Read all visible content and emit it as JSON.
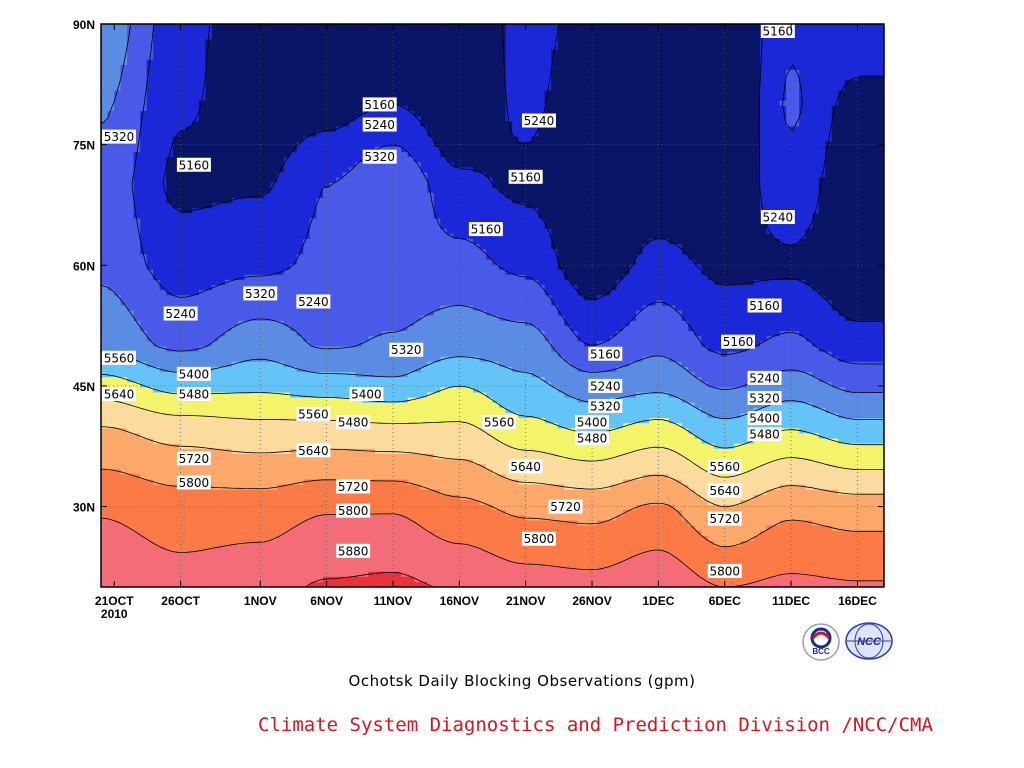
{
  "chart_data": {
    "type": "heatmap",
    "title": "Ochotsk Daily Blocking Observations (gpm)",
    "x_ticks": [
      "21OCT",
      "26OCT",
      "1NOV",
      "6NOV",
      "11NOV",
      "16NOV",
      "21NOV",
      "26NOV",
      "1DEC",
      "6DEC",
      "11DEC",
      "16DEC"
    ],
    "x_tick_year": "2010",
    "y_ticks": [
      "30N",
      "45N",
      "60N",
      "75N",
      "90N"
    ],
    "y_tick_values": [
      30,
      45,
      60,
      75,
      90
    ],
    "x_range": [
      "2010-10-20",
      "2010-12-18"
    ],
    "y_range": [
      20,
      90
    ],
    "grid": true,
    "contour_levels": [
      5160,
      5240,
      5320,
      5400,
      5480,
      5560,
      5640,
      5720,
      5800,
      5880
    ],
    "fill_colors": [
      "#0b1567",
      "#1a28d8",
      "#4a5ae8",
      "#5a8ce4",
      "#64c4f8",
      "#f4f46a",
      "#fcdc9e",
      "#fca86a",
      "#fc7a46",
      "#f46c78",
      "#e8323e"
    ],
    "latitude_profile_by_date": {
      "lat": [
        20,
        30,
        40,
        45,
        50,
        60,
        70,
        80,
        90
      ],
      "profiles": [
        {
          "date": "2010-10-20",
          "values": [
            5860,
            5790,
            5640,
            5520,
            5380,
            5300,
            5290,
            5330,
            5380
          ]
        },
        {
          "date": "2010-10-26",
          "values": [
            5830,
            5760,
            5600,
            5450,
            5300,
            5200,
            5140,
            5170,
            5190
          ]
        },
        {
          "date": "2010-11-01",
          "values": [
            5850,
            5760,
            5580,
            5460,
            5370,
            5220,
            5150,
            5110,
            5090
          ]
        },
        {
          "date": "2010-11-06",
          "values": [
            5890,
            5790,
            5580,
            5440,
            5310,
            5260,
            5240,
            5120,
            5080
          ]
        },
        {
          "date": "2010-11-11",
          "values": [
            5900,
            5790,
            5570,
            5420,
            5330,
            5270,
            5320,
            5160,
            5100
          ]
        },
        {
          "date": "2010-11-16",
          "values": [
            5870,
            5740,
            5570,
            5480,
            5370,
            5270,
            5180,
            5080,
            5060
          ]
        },
        {
          "date": "2010-11-21",
          "values": [
            5840,
            5700,
            5500,
            5420,
            5360,
            5220,
            5140,
            5180,
            5200
          ]
        },
        {
          "date": "2010-11-26",
          "values": [
            5830,
            5690,
            5460,
            5360,
            5240,
            5100,
            5080,
            5090,
            5120
          ]
        },
        {
          "date": "2010-12-01",
          "values": [
            5860,
            5730,
            5500,
            5380,
            5300,
            5190,
            5100,
            5060,
            5040
          ]
        },
        {
          "date": "2010-12-06",
          "values": [
            5800,
            5640,
            5420,
            5310,
            5220,
            5140,
            5090,
            5060,
            5050
          ]
        },
        {
          "date": "2010-12-11",
          "values": [
            5820,
            5700,
            5470,
            5360,
            5260,
            5140,
            5220,
            5250,
            5230
          ]
        },
        {
          "date": "2010-12-16",
          "values": [
            5810,
            5680,
            5420,
            5300,
            5190,
            5090,
            5080,
            5130,
            5220
          ]
        }
      ]
    },
    "contour_labels": [
      {
        "value": "5160",
        "date": "2010-10-27",
        "lat": 72.5
      },
      {
        "value": "5160",
        "date": "2010-11-10",
        "lat": 80
      },
      {
        "value": "5240",
        "date": "2010-11-10",
        "lat": 77.5
      },
      {
        "value": "5320",
        "date": "2010-11-10",
        "lat": 73.5
      },
      {
        "value": "5240",
        "date": "2010-11-22",
        "lat": 78
      },
      {
        "value": "5160",
        "date": "2010-11-21",
        "lat": 71
      },
      {
        "value": "5160",
        "date": "2010-11-18",
        "lat": 64.5
      },
      {
        "value": "5160",
        "date": "2010-12-10",
        "lat": 90
      },
      {
        "value": "5320",
        "date": "2010-10-20",
        "lat": 76
      },
      {
        "value": "5240",
        "date": "2010-10-26",
        "lat": 54
      },
      {
        "value": "5320",
        "date": "2010-11-01",
        "lat": 56.5
      },
      {
        "value": "5240",
        "date": "2010-11-05",
        "lat": 55.5
      },
      {
        "value": "5320",
        "date": "2010-11-12",
        "lat": 49.5
      },
      {
        "value": "5400",
        "date": "2010-10-27",
        "lat": 46.5
      },
      {
        "value": "5480",
        "date": "2010-10-27",
        "lat": 44
      },
      {
        "value": "5560",
        "date": "2010-10-20",
        "lat": 48.5
      },
      {
        "value": "5640",
        "date": "2010-10-20",
        "lat": 44
      },
      {
        "value": "5560",
        "date": "2010-11-05",
        "lat": 41.5
      },
      {
        "value": "5400",
        "date": "2010-11-09",
        "lat": 44
      },
      {
        "value": "5480",
        "date": "2010-11-08",
        "lat": 40.5
      },
      {
        "value": "5640",
        "date": "2010-11-05",
        "lat": 37
      },
      {
        "value": "5720",
        "date": "2010-10-27",
        "lat": 36
      },
      {
        "value": "5800",
        "date": "2010-10-27",
        "lat": 33
      },
      {
        "value": "5720",
        "date": "2010-11-08",
        "lat": 32.5
      },
      {
        "value": "5800",
        "date": "2010-11-08",
        "lat": 29.5
      },
      {
        "value": "5880",
        "date": "2010-11-08",
        "lat": 24.5
      },
      {
        "value": "5560",
        "date": "2010-11-19",
        "lat": 40.5
      },
      {
        "value": "5640",
        "date": "2010-11-21",
        "lat": 35
      },
      {
        "value": "5720",
        "date": "2010-11-24",
        "lat": 30
      },
      {
        "value": "5800",
        "date": "2010-11-22",
        "lat": 26
      },
      {
        "value": "5160",
        "date": "2010-11-27",
        "lat": 49
      },
      {
        "value": "5240",
        "date": "2010-11-27",
        "lat": 45
      },
      {
        "value": "5320",
        "date": "2010-11-27",
        "lat": 42.5
      },
      {
        "value": "5400",
        "date": "2010-11-26",
        "lat": 40.5
      },
      {
        "value": "5480",
        "date": "2010-11-26",
        "lat": 38.5
      },
      {
        "value": "5160",
        "date": "2010-12-07",
        "lat": 50.5
      },
      {
        "value": "5160",
        "date": "2010-12-09",
        "lat": 55
      },
      {
        "value": "5240",
        "date": "2010-12-10",
        "lat": 66
      },
      {
        "value": "5240",
        "date": "2010-12-09",
        "lat": 46
      },
      {
        "value": "5320",
        "date": "2010-12-09",
        "lat": 43.5
      },
      {
        "value": "5400",
        "date": "2010-12-09",
        "lat": 41
      },
      {
        "value": "5480",
        "date": "2010-12-09",
        "lat": 39
      },
      {
        "value": "5560",
        "date": "2010-12-06",
        "lat": 35
      },
      {
        "value": "5640",
        "date": "2010-12-06",
        "lat": 32
      },
      {
        "value": "5720",
        "date": "2010-12-06",
        "lat": 28.5
      },
      {
        "value": "5800",
        "date": "2010-12-06",
        "lat": 22
      }
    ]
  },
  "footer": {
    "title": "Ochotsk Daily Blocking Observations (gpm)",
    "credit": "Climate System Diagnostics and Prediction Division /NCC/CMA",
    "logo_left": "BCC",
    "logo_right": "NCC"
  }
}
